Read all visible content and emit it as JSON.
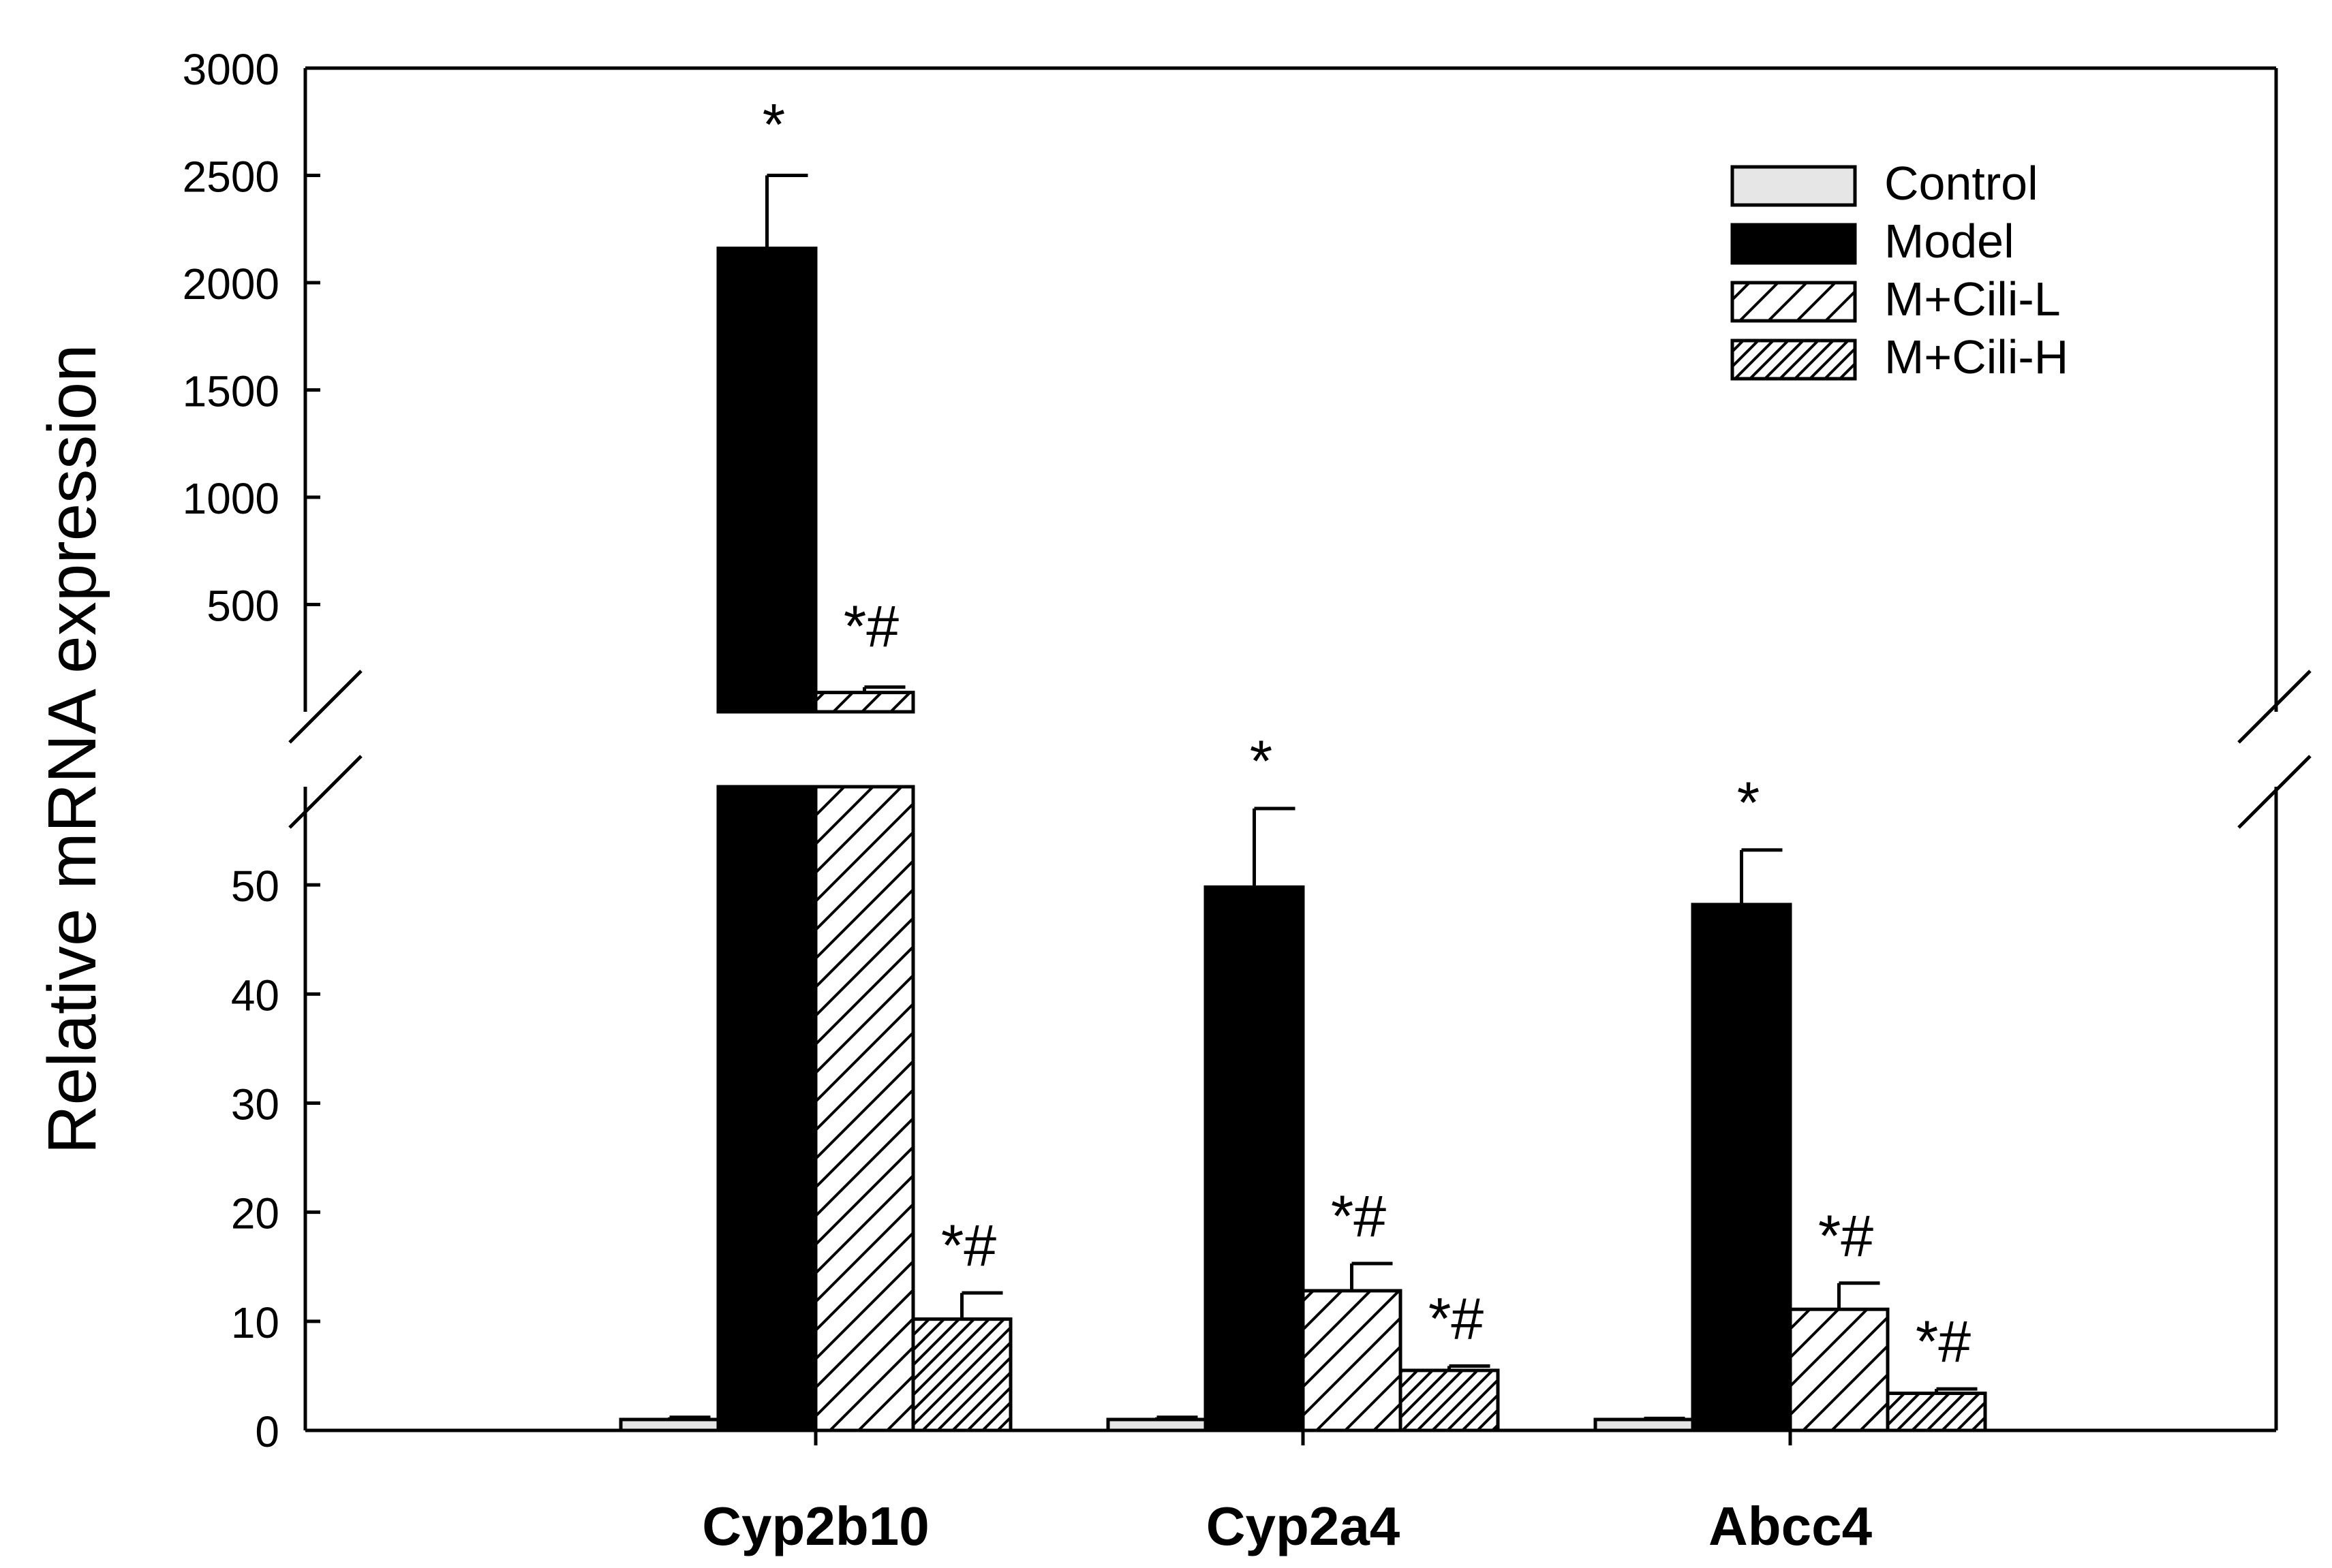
{
  "chart_data": {
    "type": "bar",
    "title": "",
    "xlabel": "",
    "ylabel": "Relative mRNA expression",
    "categories": [
      "Cyp2b10",
      "Cyp2a4",
      "Abcc4"
    ],
    "series": [
      {
        "name": "Control",
        "values": [
          1.0,
          1.0,
          1.0
        ],
        "errors": [
          0.2,
          0.2,
          0.1
        ],
        "annotations": [
          "",
          "",
          ""
        ],
        "pattern": "none",
        "color": "#e6e6e6"
      },
      {
        "name": "Model",
        "values": [
          2160,
          49.8,
          48.2
        ],
        "errors": [
          340,
          7.2,
          5.0
        ],
        "annotations": [
          "*",
          "*",
          "*"
        ],
        "pattern": "solid",
        "color": "#000000"
      },
      {
        "name": "M+Cili-L",
        "values": [
          90,
          12.8,
          11.1
        ],
        "errors": [
          25,
          2.5,
          2.4
        ],
        "annotations": [
          "*#",
          "*#",
          "*#"
        ],
        "pattern": "sparse-diagonal",
        "color": "#ffffff"
      },
      {
        "name": "M+Cili-H",
        "values": [
          10.2,
          5.5,
          3.4
        ],
        "errors": [
          2.4,
          0.4,
          0.4
        ],
        "annotations": [
          "*#",
          "*#",
          "*#"
        ],
        "pattern": "dense-diagonal",
        "color": "#ffffff"
      }
    ],
    "axis_break": {
      "lower_range": [
        0,
        59
      ],
      "upper_range": [
        0,
        3000
      ]
    },
    "lower_ticks": [
      0,
      10,
      20,
      30,
      40,
      50
    ],
    "upper_ticks": [
      500,
      1000,
      1500,
      2000,
      2500,
      3000
    ],
    "legend_position": "top-right",
    "grid": false
  }
}
